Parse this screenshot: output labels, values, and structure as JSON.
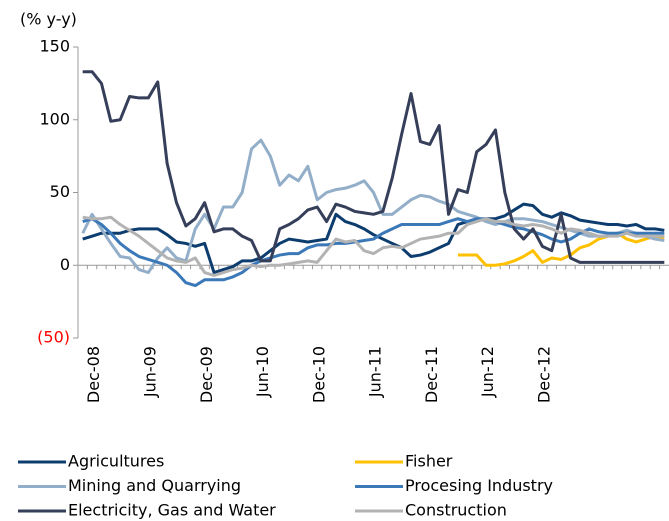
{
  "chart_data": {
    "type": "line",
    "y_label": "(% y-y)",
    "categories": [
      "Dec-08",
      null,
      null,
      null,
      null,
      null,
      "Jun-09",
      null,
      null,
      null,
      null,
      null,
      "Dec-09",
      null,
      null,
      null,
      null,
      null,
      "Jun-10",
      null,
      null,
      null,
      null,
      null,
      "Dec-10",
      null,
      null,
      null,
      null,
      null,
      "Jun-11",
      null,
      null,
      null,
      null,
      null,
      "Dec-11",
      null,
      null,
      null,
      null,
      null,
      "Jun-12",
      null,
      null,
      null,
      null,
      null,
      "Dec-12",
      null,
      null,
      null,
      null,
      null,
      null,
      null,
      null,
      null,
      null,
      null,
      null,
      null,
      null
    ],
    "ylim": [
      -50,
      150
    ],
    "yticks": [
      {
        "value": -50,
        "label": "(50)"
      },
      0,
      50,
      100,
      150
    ],
    "negative_tick_color": "#ff0000",
    "series": [
      {
        "name": "Agricultures",
        "color": "#0d3c6e",
        "values": [
          18,
          20,
          22,
          22,
          22,
          24,
          25,
          25,
          25,
          21,
          16,
          15,
          13,
          15,
          -5,
          -3,
          -1,
          3,
          3,
          5,
          10,
          15,
          18,
          17,
          16,
          17,
          18,
          35,
          30,
          28,
          25,
          21,
          18,
          15,
          12,
          6,
          7,
          9,
          12,
          15,
          28,
          30,
          31,
          32,
          32,
          34,
          38,
          42,
          41,
          35,
          33,
          36,
          34,
          31,
          30,
          29,
          28,
          28,
          27,
          28,
          25,
          25,
          24
        ]
      },
      {
        "name": "Fisher",
        "color": "#ffc000",
        "values": [
          null,
          null,
          null,
          null,
          null,
          null,
          null,
          null,
          null,
          null,
          null,
          null,
          null,
          null,
          null,
          null,
          null,
          null,
          null,
          null,
          null,
          null,
          null,
          null,
          null,
          null,
          null,
          null,
          null,
          null,
          null,
          null,
          null,
          null,
          null,
          null,
          null,
          null,
          null,
          null,
          7,
          7,
          7,
          0,
          0,
          1,
          3,
          6,
          10,
          2,
          5,
          4,
          7,
          12,
          14,
          18,
          20,
          22,
          18,
          16,
          18,
          20,
          19
        ]
      },
      {
        "name": "Mining and Quarrying",
        "color": "#93aec8",
        "values": [
          22,
          35,
          25,
          15,
          6,
          5,
          -3,
          -5,
          5,
          12,
          5,
          3,
          25,
          35,
          25,
          40,
          40,
          50,
          80,
          86,
          75,
          55,
          62,
          58,
          68,
          45,
          50,
          52,
          53,
          55,
          58,
          50,
          35,
          35,
          40,
          45,
          48,
          47,
          44,
          42,
          37,
          35,
          33,
          30,
          28,
          30,
          32,
          32,
          31,
          30,
          28,
          26,
          24,
          22,
          20,
          20,
          20,
          22,
          24,
          22,
          20,
          18,
          17
        ]
      },
      {
        "name": "Procesing Industry",
        "color": "#3b78b8",
        "values": [
          30,
          32,
          28,
          22,
          15,
          10,
          6,
          4,
          2,
          0,
          -5,
          -12,
          -14,
          -10,
          -10,
          -10,
          -8,
          -5,
          0,
          3,
          5,
          7,
          8,
          8,
          12,
          14,
          14,
          15,
          15,
          16,
          17,
          18,
          22,
          25,
          28,
          28,
          28,
          28,
          28,
          30,
          32,
          30,
          32,
          32,
          30,
          28,
          26,
          25,
          23,
          21,
          18,
          16,
          18,
          22,
          25,
          23,
          22,
          22,
          22,
          22,
          22,
          22,
          22
        ]
      },
      {
        "name": "Electricity, Gas and Water",
        "color": "#363f5a",
        "values": [
          133,
          133,
          125,
          99,
          100,
          116,
          115,
          115,
          126,
          70,
          43,
          27,
          32,
          43,
          23,
          25,
          25,
          20,
          17,
          3,
          3,
          25,
          28,
          32,
          38,
          40,
          30,
          42,
          40,
          37,
          36,
          35,
          37,
          60,
          90,
          118,
          85,
          83,
          96,
          35,
          52,
          50,
          78,
          83,
          93,
          50,
          25,
          18,
          25,
          13,
          10,
          35,
          5,
          2,
          2,
          2,
          2,
          2,
          2,
          2,
          2,
          2,
          2
        ]
      },
      {
        "name": "Construction",
        "color": "#b3b3b3",
        "values": [
          33,
          32,
          32,
          33,
          28,
          24,
          20,
          15,
          10,
          5,
          3,
          2,
          5,
          -5,
          -7,
          -5,
          -3,
          -2,
          0,
          -1,
          0,
          0,
          1,
          2,
          3,
          2,
          10,
          18,
          16,
          17,
          10,
          8,
          12,
          13,
          12,
          15,
          18,
          19,
          20,
          22,
          22,
          28,
          30,
          32,
          30,
          30,
          28,
          27,
          28,
          27,
          25,
          22,
          25,
          24,
          22,
          20,
          20,
          20,
          22,
          20,
          20,
          20,
          20
        ]
      }
    ]
  }
}
